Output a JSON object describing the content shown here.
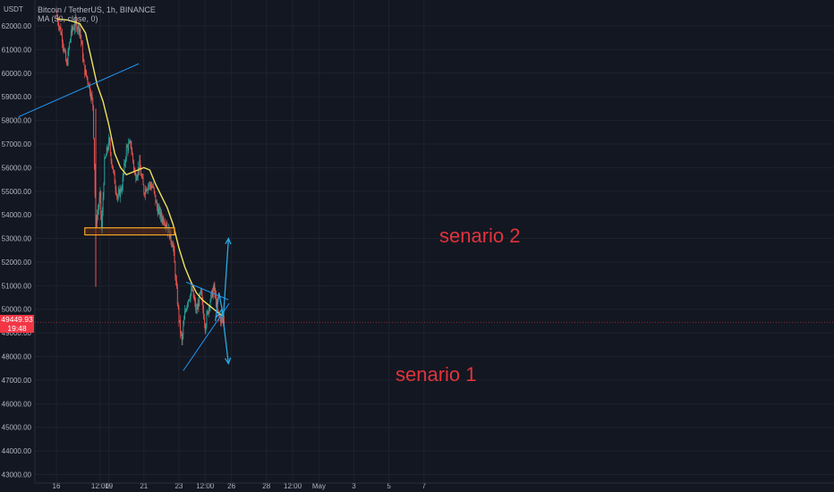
{
  "colors": {
    "background": "#131722",
    "grid": "#1e222d",
    "axis_text": "#b2b5be",
    "candle_up": "#26a69a",
    "candle_down": "#ef5350",
    "ma_line": "#f0e35b",
    "trendline": "#2196f3",
    "scenario_arrow": "#29a9e0",
    "zone_border": "#f5a623",
    "zone_fill": "#5a2a1a",
    "annotation_text": "#e0333b",
    "price_line": "#e0333b"
  },
  "header": {
    "y_unit": "USDT",
    "symbol_line": "Bitcoin / TetherUS, 1h, BINANCE",
    "indicator_line": "MA (50, close, 0)"
  },
  "price_tag": {
    "price": "49449.93",
    "countdown": "19:48"
  },
  "chart_data": {
    "type": "candlestick",
    "title": "Bitcoin / TetherUS, 1h, BINANCE",
    "ylim": [
      42800,
      62800
    ],
    "y_ticks": [
      43000,
      44000,
      45000,
      46000,
      47000,
      48000,
      49000,
      50000,
      51000,
      52000,
      53000,
      54000,
      55000,
      56000,
      57000,
      58000,
      59000,
      60000,
      61000,
      62000
    ],
    "y_tick_labels": [
      "43000.00",
      "44000.00",
      "45000.00",
      "46000.00",
      "47000.00",
      "48000.00",
      "49000.00",
      "50000.00",
      "51000.00",
      "52000.00",
      "53000.00",
      "54000.00",
      "55000.00",
      "56000.00",
      "57000.00",
      "58000.00",
      "59000.00",
      "60000.00",
      "61000.00",
      "62000.00"
    ],
    "x_ticks": [
      "16",
      "12:00",
      "19",
      "21",
      "23",
      "12:00",
      "26",
      "28",
      "12:00",
      "May",
      "3",
      "5",
      "7"
    ],
    "x_tick_hours": [
      0,
      60,
      72,
      120,
      168,
      204,
      240,
      288,
      324,
      360,
      408,
      456,
      504
    ],
    "last_price": 49449.93,
    "close_path_hours": [
      0,
      8,
      14,
      20,
      26,
      32,
      38,
      44,
      50,
      54,
      57,
      60,
      62,
      66,
      72,
      78,
      84,
      90,
      96,
      102,
      108,
      114,
      120,
      126,
      132,
      138,
      144,
      150,
      156,
      160,
      164,
      168,
      172,
      176,
      180,
      186,
      192,
      198,
      204,
      210,
      216,
      222,
      230
    ],
    "close_path_values": [
      62500,
      61500,
      60300,
      61700,
      62100,
      61900,
      60200,
      59600,
      58700,
      53600,
      54200,
      54800,
      53300,
      56200,
      57100,
      55800,
      54700,
      55200,
      56800,
      57000,
      55600,
      56100,
      55000,
      55300,
      55200,
      54300,
      53900,
      53700,
      53100,
      52700,
      51100,
      49600,
      48600,
      49800,
      50400,
      50800,
      49900,
      50700,
      49300,
      50300,
      50900,
      49700,
      49450
    ],
    "ma_series": {
      "name": "MA (50, close, 0)",
      "hours": [
        0,
        16,
        32,
        40,
        48,
        56,
        64,
        72,
        80,
        88,
        96,
        104,
        112,
        120,
        128,
        136,
        144,
        152,
        160,
        168,
        176,
        184,
        192,
        200,
        208,
        216,
        224,
        230
      ],
      "values": [
        62300,
        62250,
        62100,
        61700,
        60600,
        59500,
        58800,
        57800,
        56600,
        56000,
        55700,
        55800,
        55900,
        56000,
        55900,
        55300,
        54800,
        54300,
        53600,
        52600,
        51800,
        51200,
        50700,
        50400,
        50200,
        50000,
        49800,
        49700
      ]
    },
    "annotations": {
      "scenario_2_label": "senario 2",
      "scenario_1_label": "senario 1",
      "support_zone": {
        "hours": [
          39,
          162
        ],
        "values": [
          53150,
          53450
        ]
      },
      "trendline_1": {
        "hours": [
          -52,
          113
        ],
        "values": [
          58150,
          60400
        ]
      },
      "triangle_upper": {
        "hours": [
          178,
          236
        ],
        "values": [
          51150,
          50400
        ]
      },
      "triangle_lower": {
        "hours": [
          174,
          237
        ],
        "values": [
          47400,
          50250
        ]
      },
      "scenario_2_path": {
        "hours": [
          218,
          223,
          229,
          236
        ],
        "values": [
          49500,
          50700,
          49700,
          53000
        ]
      },
      "scenario_1_path": {
        "hours": [
          219,
          227,
          236
        ],
        "values": [
          49650,
          50000,
          47700
        ]
      }
    }
  }
}
